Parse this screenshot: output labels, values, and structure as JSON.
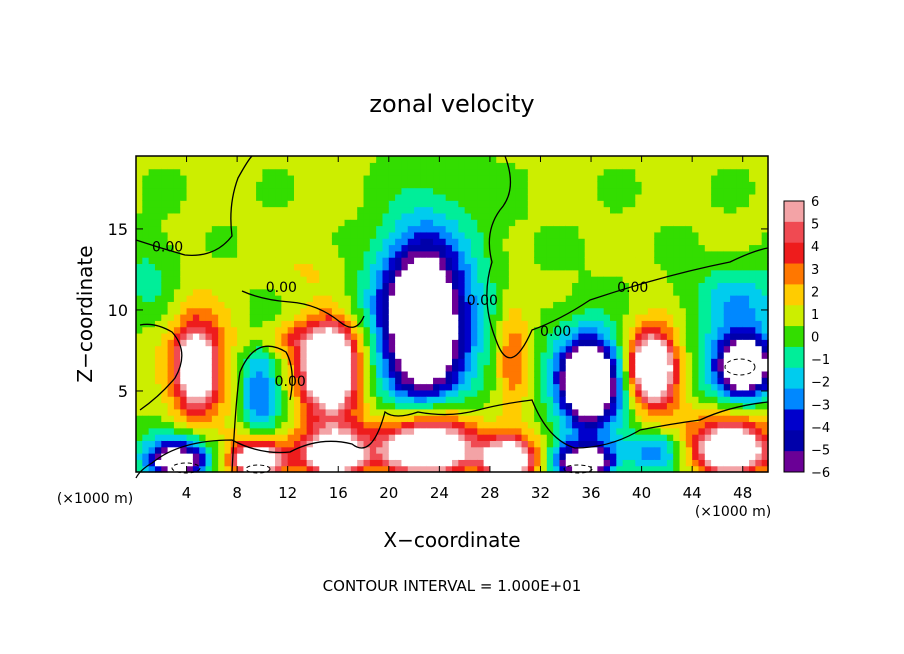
{
  "chart_data": {
    "type": "heatmap",
    "title": "zonal velocity",
    "xlabel": "X−coordinate",
    "ylabel": "Z−coordinate",
    "x_unit_left": "(×1000 m)",
    "x_unit_right": "(×1000 m)",
    "footer": "CONTOUR INTERVAL = 1.000E+01",
    "xlim": [
      0,
      50
    ],
    "ylim": [
      0,
      19.5
    ],
    "x_ticks": [
      4,
      8,
      12,
      16,
      20,
      24,
      28,
      32,
      36,
      40,
      44,
      48
    ],
    "y_ticks": [
      5,
      10,
      15
    ],
    "colorbar": {
      "levels": [
        6,
        5,
        4,
        3,
        2,
        1,
        0,
        -1,
        -2,
        -3,
        -4,
        -5,
        -6
      ],
      "labels": [
        "6",
        "5",
        "4",
        "3",
        "2",
        "1",
        "0",
        "−1",
        "−2",
        "−3",
        "−4",
        "−5",
        "−6"
      ],
      "colors": [
        "#f3a3a6",
        "#f04a52",
        "#ee1c1c",
        "#ff7700",
        "#ffcc00",
        "#ccee00",
        "#33dd00",
        "#00ee99",
        "#00ccee",
        "#0088ff",
        "#0000cc",
        "#0000aa",
        "#6a0096"
      ]
    },
    "contour_labels": [
      {
        "text": "0.00",
        "x": 2.5,
        "z": 13.6
      },
      {
        "text": "0.00",
        "x": 11.5,
        "z": 11.1
      },
      {
        "text": "0.00",
        "x": 27.4,
        "z": 10.3
      },
      {
        "text": "0.00",
        "x": 33.2,
        "z": 8.4
      },
      {
        "text": "0.00",
        "x": 39.3,
        "z": 11.1
      },
      {
        "text": "0.00",
        "x": 12.2,
        "z": 5.3
      }
    ],
    "features": [
      {
        "x": 22.7,
        "z": 9.3,
        "rx": 6.0,
        "rz": 8.5,
        "v": -5
      },
      {
        "x": 22.7,
        "z": 9.3,
        "rx": 3.4,
        "rz": 5.5,
        "v": -9
      },
      {
        "x": 4.8,
        "z": 6.5,
        "rx": 3.0,
        "rz": 4.8,
        "v": 4.5
      },
      {
        "x": 4.8,
        "z": 6.5,
        "rx": 1.6,
        "rz": 2.4,
        "v": 7
      },
      {
        "x": 9.8,
        "z": 5.0,
        "rx": 2.0,
        "rz": 4.5,
        "v": -4
      },
      {
        "x": 15.5,
        "z": 6.3,
        "rx": 3.6,
        "rz": 4.0,
        "v": 5
      },
      {
        "x": 15.3,
        "z": 6.4,
        "rx": 2.3,
        "rz": 2.8,
        "v": 8
      },
      {
        "x": 29.8,
        "z": 7.0,
        "rx": 1.7,
        "rz": 5.0,
        "v": 3
      },
      {
        "x": 36.0,
        "z": 5.6,
        "rx": 3.8,
        "rz": 4.2,
        "v": -6
      },
      {
        "x": 35.8,
        "z": 5.6,
        "rx": 2.4,
        "rz": 2.7,
        "v": -9
      },
      {
        "x": 40.8,
        "z": 6.4,
        "rx": 3.1,
        "rz": 3.6,
        "v": 5
      },
      {
        "x": 40.9,
        "z": 6.4,
        "rx": 1.7,
        "rz": 2.2,
        "v": 8
      },
      {
        "x": 47.9,
        "z": 6.6,
        "rx": 4.0,
        "rz": 3.3,
        "v": -6
      },
      {
        "x": 48.2,
        "z": 6.6,
        "rx": 2.0,
        "rz": 1.7,
        "v": -9
      },
      {
        "x": 47.8,
        "z": 10.8,
        "rx": 5.0,
        "rz": 2.5,
        "v": -2.5
      },
      {
        "x": 3.2,
        "z": 1.3,
        "rx": 3.5,
        "rz": 1.6,
        "v": -5
      },
      {
        "x": 3.2,
        "z": 0.6,
        "rx": 2.5,
        "rz": 1.0,
        "v": -8
      },
      {
        "x": 9.6,
        "z": 1.3,
        "rx": 3.0,
        "rz": 1.6,
        "v": 5
      },
      {
        "x": 9.6,
        "z": 0.6,
        "rx": 2.2,
        "rz": 1.0,
        "v": 8
      },
      {
        "x": 15.7,
        "z": 1.6,
        "rx": 3.6,
        "rz": 2.0,
        "v": 5
      },
      {
        "x": 15.7,
        "z": 0.9,
        "rx": 2.5,
        "rz": 1.3,
        "v": 8
      },
      {
        "x": 23.0,
        "z": 2.5,
        "rx": 5.0,
        "rz": 2.6,
        "v": 6
      },
      {
        "x": 23.0,
        "z": 1.2,
        "rx": 4.2,
        "rz": 1.7,
        "v": 9
      },
      {
        "x": 29.5,
        "z": 1.3,
        "rx": 3.0,
        "rz": 1.6,
        "v": 5
      },
      {
        "x": 29.5,
        "z": 0.6,
        "rx": 2.2,
        "rz": 1.0,
        "v": 8
      },
      {
        "x": 35.5,
        "z": 1.1,
        "rx": 3.2,
        "rz": 1.4,
        "v": -5
      },
      {
        "x": 35.5,
        "z": 0.5,
        "rx": 2.4,
        "rz": 0.9,
        "v": -8
      },
      {
        "x": 41.0,
        "z": 1.3,
        "rx": 2.6,
        "rz": 1.5,
        "v": -4
      },
      {
        "x": 47.0,
        "z": 2.2,
        "rx": 4.2,
        "rz": 2.4,
        "v": 5
      },
      {
        "x": 47.2,
        "z": 1.2,
        "rx": 3.0,
        "rz": 1.5,
        "v": 8
      },
      {
        "x": 12.5,
        "z": 8.3,
        "rx": 6.0,
        "rz": 1.4,
        "v": 2
      },
      {
        "x": 19.0,
        "z": 16.0,
        "rx": 6.0,
        "rz": 4.0,
        "v": 0.5
      },
      {
        "x": 1.0,
        "z": 12.0,
        "rx": 3.0,
        "rz": 3.0,
        "v": -1.5
      },
      {
        "x": 14.0,
        "z": 12.5,
        "rx": 4.0,
        "rz": 2.0,
        "v": 1
      }
    ]
  }
}
